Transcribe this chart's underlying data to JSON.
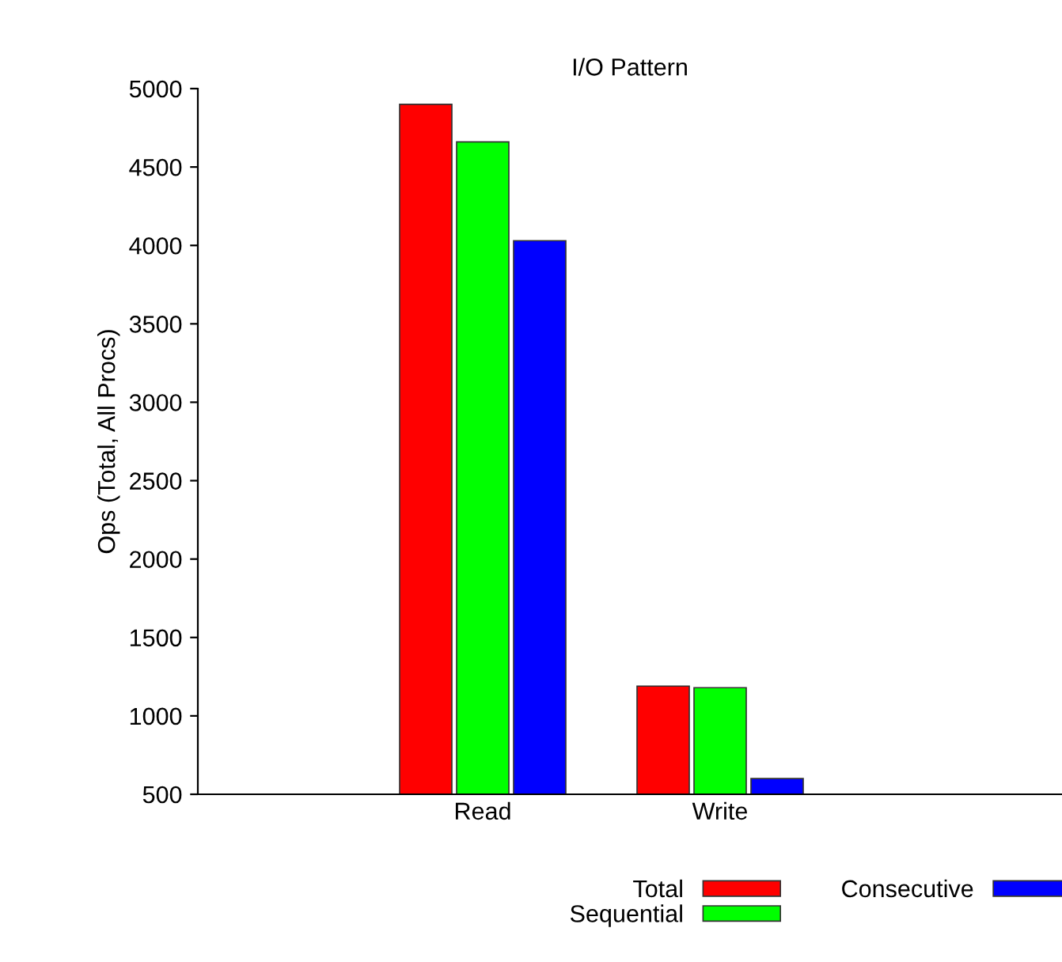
{
  "chart_data": {
    "type": "bar",
    "title": "I/O Pattern",
    "ylabel": "Ops (Total, All Procs)",
    "categories": [
      "Read",
      "Write"
    ],
    "series": [
      {
        "name": "Total",
        "color": "#ff0000",
        "values": [
          4900,
          1190
        ]
      },
      {
        "name": "Sequential",
        "color": "#00ff00",
        "values": [
          4660,
          1180
        ]
      },
      {
        "name": "Consecutive",
        "color": "#0000ff",
        "values": [
          4030,
          600
        ]
      }
    ],
    "ylim": [
      500,
      5000
    ],
    "yticks": [
      500,
      1000,
      1500,
      2000,
      2500,
      3000,
      3500,
      4000,
      4500,
      5000
    ],
    "grid": false,
    "legend": "bottom"
  }
}
